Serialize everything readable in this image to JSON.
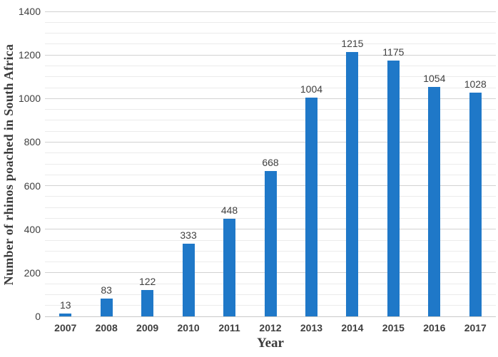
{
  "chart_data": {
    "type": "bar",
    "title": "",
    "categories": [
      "2007",
      "2008",
      "2009",
      "2010",
      "2011",
      "2012",
      "2013",
      "2014",
      "2015",
      "2016",
      "2017"
    ],
    "values": [
      13,
      83,
      122,
      333,
      448,
      668,
      1004,
      1215,
      1175,
      1054,
      1028
    ],
    "xlabel": "Year",
    "ylabel": "Number of rhinos poached in South Africa",
    "ylim": [
      0,
      1400
    ],
    "yticks": [
      0,
      200,
      400,
      600,
      800,
      1000,
      1200,
      1400
    ],
    "minor_unit": 50,
    "major_unit": 200,
    "grid": true,
    "legend": false,
    "data_labels": true,
    "bar_color": "#1F78C8",
    "label_color": "#404040",
    "title_color": "#3B3B3B",
    "major_gridline_color": "#D2D2D2",
    "minor_gridline_color": "#EBEBEB",
    "axis_line_color": "#C9C9C9",
    "background_color": "#FFFFFF"
  }
}
